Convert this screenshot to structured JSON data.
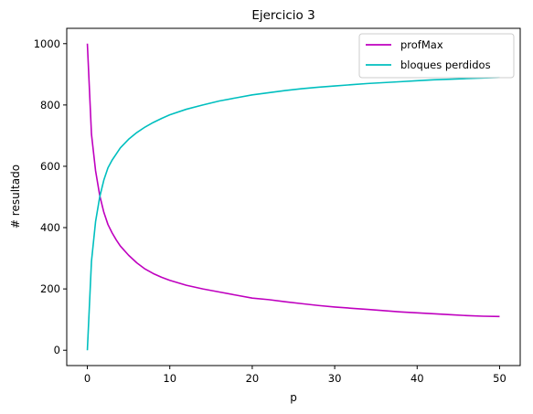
{
  "chart_data": {
    "type": "line",
    "title": "Ejercicio 3",
    "xlabel": "p",
    "ylabel": "# resultado",
    "xlim": [
      -2.5,
      52.5
    ],
    "ylim": [
      -50,
      1050
    ],
    "xticks": [
      0,
      10,
      20,
      30,
      40,
      50
    ],
    "yticks": [
      0,
      200,
      400,
      600,
      800,
      1000
    ],
    "grid": false,
    "legend_position": "top-right",
    "series": [
      {
        "name": "profMax",
        "color": "#bf00bf",
        "x": [
          0,
          0.5,
          1,
          1.5,
          2,
          2.5,
          3,
          3.5,
          4,
          5,
          6,
          7,
          8,
          9,
          10,
          12,
          14,
          16,
          18,
          20,
          22,
          24,
          26,
          28,
          30,
          32,
          34,
          36,
          38,
          40,
          42,
          44,
          46,
          48,
          50
        ],
        "values": [
          1000,
          705,
          585,
          505,
          450,
          410,
          383,
          360,
          340,
          310,
          285,
          265,
          250,
          238,
          228,
          212,
          200,
          190,
          180,
          170,
          165,
          158,
          152,
          146,
          141,
          137,
          133,
          129,
          125,
          122,
          119,
          116,
          113,
          111,
          110
        ]
      },
      {
        "name": "bloques perdidos",
        "color": "#00bfbf",
        "x": [
          0,
          0.5,
          1,
          1.5,
          2,
          2.5,
          3,
          3.5,
          4,
          5,
          6,
          7,
          8,
          9,
          10,
          12,
          14,
          16,
          18,
          20,
          22,
          24,
          26,
          28,
          30,
          32,
          34,
          36,
          38,
          40,
          42,
          44,
          46,
          48,
          50
        ],
        "values": [
          0,
          290,
          420,
          500,
          555,
          595,
          620,
          640,
          660,
          688,
          710,
          728,
          743,
          756,
          768,
          786,
          800,
          813,
          823,
          833,
          840,
          847,
          853,
          858,
          862,
          866,
          870,
          873,
          876,
          879,
          882,
          884,
          886,
          888,
          890
        ]
      }
    ]
  }
}
